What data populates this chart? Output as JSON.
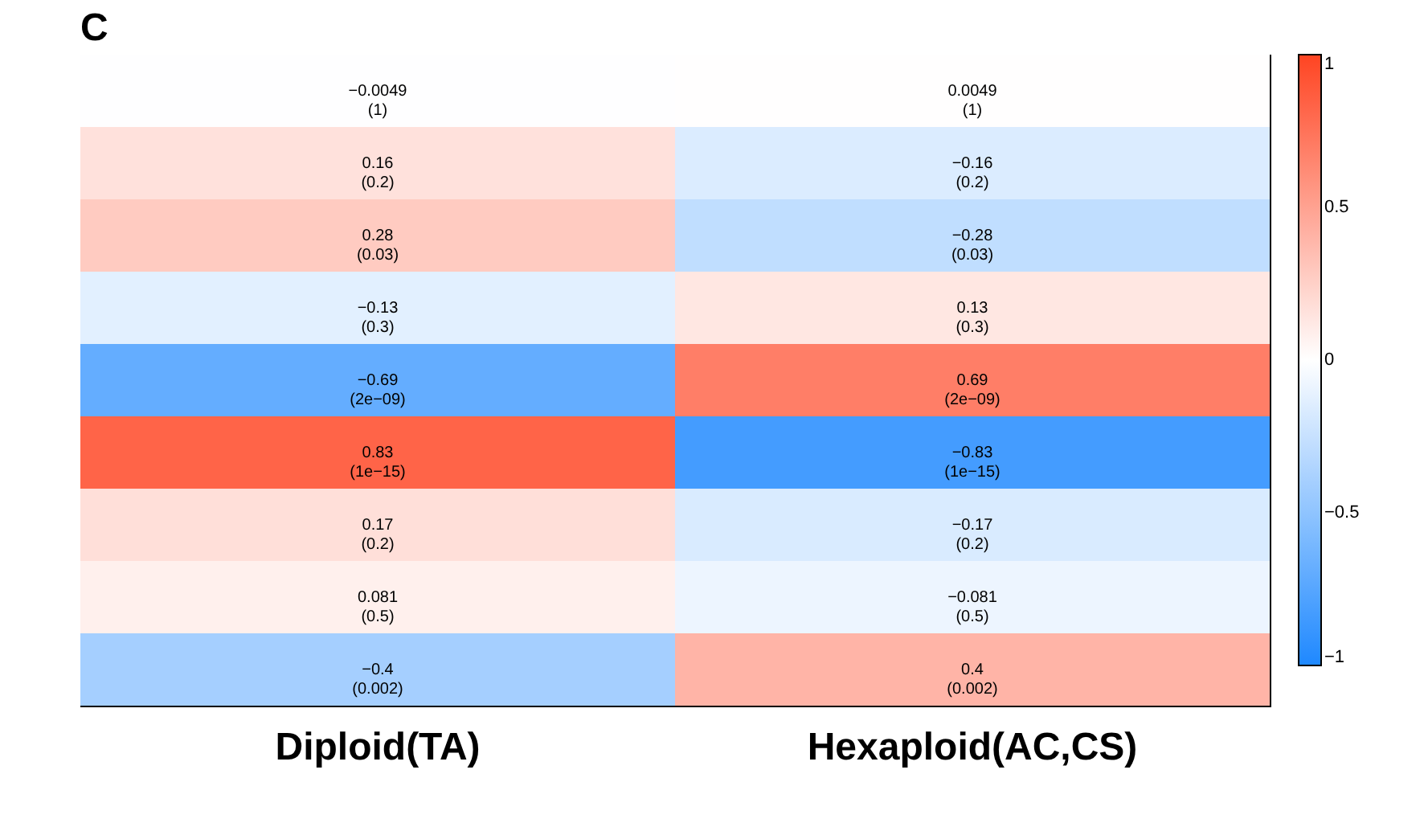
{
  "chart_data": {
    "type": "heatmap",
    "title": "C",
    "categories": [
      "Diploid(TA)",
      "Hexaploid(AC,CS)"
    ],
    "y_categories": [
      null,
      null,
      null,
      null,
      null,
      null,
      null,
      null,
      null
    ],
    "cells": [
      [
        -0.0049,
        0.0049
      ],
      [
        0.16,
        -0.16
      ],
      [
        0.28,
        -0.28
      ],
      [
        -0.13,
        0.13
      ],
      [
        -0.69,
        0.69
      ],
      [
        0.83,
        -0.83
      ],
      [
        0.17,
        -0.17
      ],
      [
        0.081,
        -0.081
      ],
      [
        -0.4,
        0.4
      ]
    ],
    "cell_labels": [
      [
        "−0.0049\n(1)",
        "0.0049\n(1)"
      ],
      [
        "0.16\n(0.2)",
        "−0.16\n(0.2)"
      ],
      [
        "0.28\n(0.03)",
        "−0.28\n(0.03)"
      ],
      [
        "−0.13\n(0.3)",
        "0.13\n(0.3)"
      ],
      [
        "−0.69\n(2e−09)",
        "0.69\n(2e−09)"
      ],
      [
        "0.83\n(1e−15)",
        "−0.83\n(1e−15)"
      ],
      [
        "0.17\n(0.2)",
        "−0.17\n(0.2)"
      ],
      [
        "0.081\n(0.5)",
        "−0.081\n(0.5)"
      ],
      [
        "−0.4\n(0.002)",
        "0.4\n(0.002)"
      ]
    ],
    "clim": [
      -1,
      1
    ],
    "cticks": [
      -1,
      -0.5,
      0,
      0.5,
      1
    ]
  }
}
